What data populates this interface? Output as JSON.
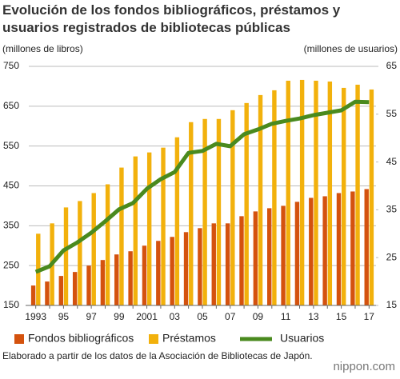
{
  "chart_data": {
    "type": "bar",
    "title": "Evolución de los fondos bibliográficos, préstamos y usuarios registrados de bibliotecas públicas",
    "y_label": "(millones de libros)",
    "y2_label": "(millones de usuarios)",
    "categories": [
      "1993",
      null,
      "95",
      null,
      "97",
      null,
      "99",
      null,
      "2001",
      null,
      "03",
      null,
      "05",
      null,
      "07",
      null,
      "09",
      null,
      "11",
      null,
      "13",
      null,
      "15",
      null,
      "17"
    ],
    "series": [
      {
        "name": "Fondos bibliográficos",
        "color": "#d4520e",
        "type": "bar",
        "values": [
          200,
          210,
          224,
          234,
          250,
          264,
          278,
          286,
          300,
          312,
          322,
          334,
          344,
          356,
          356,
          374,
          386,
          394,
          400,
          410,
          420,
          424,
          432,
          436,
          442
        ]
      },
      {
        "name": "Préstamos",
        "color": "#f2b10c",
        "type": "bar",
        "values": [
          330,
          356,
          396,
          412,
          432,
          454,
          496,
          524,
          534,
          546,
          572,
          610,
          618,
          618,
          640,
          658,
          678,
          690,
          714,
          716,
          714,
          712,
          696,
          704,
          692
        ]
      },
      {
        "name": "Usuarios",
        "color": "#4a8a1e",
        "type": "line",
        "axis": "y2",
        "values": [
          22.0,
          23.2,
          26.5,
          28.2,
          30.2,
          32.6,
          35.1,
          36.4,
          39.4,
          41.4,
          42.9,
          46.9,
          47.3,
          48.8,
          48.3,
          50.8,
          51.8,
          53.0,
          53.6,
          54.1,
          54.8,
          55.3,
          55.8,
          57.6,
          57.5
        ]
      }
    ],
    "ylim": [
      150,
      750
    ],
    "yticks": [
      150,
      250,
      350,
      450,
      550,
      650,
      750
    ],
    "y2lim": [
      15,
      65
    ],
    "y2ticks": [
      15,
      25,
      35,
      45,
      55,
      65
    ],
    "grid": true,
    "legend": "bottom",
    "source": "Elaborado a partir de los datos de la Asociación de Bibliotecas de Japón.",
    "logo": "nippon.com"
  }
}
